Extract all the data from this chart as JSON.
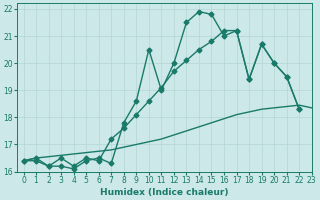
{
  "xlabel": "Humidex (Indice chaleur)",
  "bg_color": "#cce8e8",
  "line_color": "#1a7a6a",
  "grid_color": "#b8d8d8",
  "xlim": [
    -0.5,
    23
  ],
  "ylim": [
    16,
    22.2
  ],
  "yticks": [
    16,
    17,
    18,
    19,
    20,
    21,
    22
  ],
  "xticks": [
    0,
    1,
    2,
    3,
    4,
    5,
    6,
    7,
    8,
    9,
    10,
    11,
    12,
    13,
    14,
    15,
    16,
    17,
    18,
    19,
    20,
    21,
    22,
    23
  ],
  "series1_x": [
    0,
    1,
    2,
    3,
    4,
    5,
    6,
    7,
    8,
    9,
    10,
    11,
    12,
    13,
    14,
    15,
    16,
    17,
    18,
    19,
    20,
    21,
    22
  ],
  "series1_y": [
    16.4,
    16.4,
    16.2,
    16.2,
    16.1,
    16.4,
    16.5,
    16.3,
    17.8,
    18.6,
    20.5,
    19.0,
    20.0,
    21.5,
    21.9,
    21.8,
    21.0,
    21.2,
    19.4,
    20.7,
    20.0,
    19.5,
    18.3
  ],
  "series2_x": [
    0,
    1,
    2,
    3,
    4,
    5,
    6,
    7,
    8,
    9,
    10,
    11,
    12,
    13,
    14,
    15,
    16,
    17,
    18,
    19,
    20,
    21,
    22
  ],
  "series2_y": [
    16.4,
    16.5,
    16.2,
    16.5,
    16.2,
    16.5,
    16.4,
    17.2,
    17.6,
    18.1,
    18.6,
    19.1,
    19.7,
    20.1,
    20.5,
    20.8,
    21.2,
    21.2,
    19.4,
    20.7,
    20.0,
    19.5,
    18.3
  ],
  "series3_x": [
    0,
    1,
    2,
    3,
    4,
    5,
    6,
    7,
    8,
    9,
    10,
    11,
    12,
    13,
    14,
    15,
    16,
    17,
    18,
    19,
    20,
    21,
    22,
    23
  ],
  "series3_y": [
    16.4,
    16.5,
    16.55,
    16.6,
    16.65,
    16.7,
    16.75,
    16.8,
    16.9,
    17.0,
    17.1,
    17.2,
    17.35,
    17.5,
    17.65,
    17.8,
    17.95,
    18.1,
    18.2,
    18.3,
    18.35,
    18.4,
    18.45,
    18.35
  ],
  "marker": "D",
  "markersize": 2.5,
  "linewidth": 1.0
}
